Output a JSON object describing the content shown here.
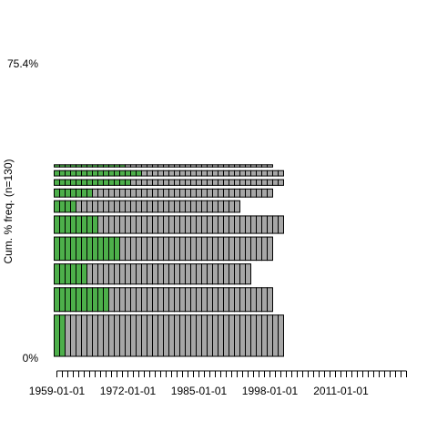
{
  "chart_data": {
    "type": "bar",
    "stacked": true,
    "orientation": "horizontal-stack",
    "title": "",
    "xlabel": "",
    "ylabel": "Cum. % freq. (n=130)",
    "y_ticks": [
      "75.4%",
      "0%"
    ],
    "x_tick_labels": [
      "1959-01-01",
      "1972-01-01",
      "1985-01-01",
      "1998-01-01",
      "2011-01-01"
    ],
    "x_tick_years": [
      1959,
      1972,
      1985,
      1998,
      2011
    ],
    "x_axis": {
      "start_year": 1959,
      "end_year": 2023,
      "minor_tick_interval_years": 1
    },
    "grid": false,
    "legend": "none",
    "colors": {
      "highlight": "#4daf4a",
      "rest": "#a6a6a6",
      "outline": "#000000"
    },
    "rows_bottom_to_top": [
      {
        "cumulative_percent_bottom": 0.0,
        "cumulative_percent_top": 11.5,
        "cells_highlight": 2,
        "cells_rest": 40
      },
      {
        "cumulative_percent_bottom": 11.5,
        "cumulative_percent_top": 18.5,
        "cells_highlight": 10,
        "cells_rest": 30
      },
      {
        "cumulative_percent_bottom": 18.5,
        "cumulative_percent_top": 24.6,
        "cells_highlight": 6,
        "cells_rest": 30
      },
      {
        "cumulative_percent_bottom": 24.6,
        "cumulative_percent_top": 31.5,
        "cells_highlight": 12,
        "cells_rest": 28
      },
      {
        "cumulative_percent_bottom": 31.5,
        "cumulative_percent_top": 36.9,
        "cells_highlight": 8,
        "cells_rest": 34
      },
      {
        "cumulative_percent_bottom": 36.9,
        "cumulative_percent_top": 40.8,
        "cells_highlight": 4,
        "cells_rest": 30
      },
      {
        "cumulative_percent_bottom": 40.8,
        "cumulative_percent_top": 43.8,
        "cells_highlight": 7,
        "cells_rest": 33
      },
      {
        "cumulative_percent_bottom": 43.8,
        "cumulative_percent_top": 46.2,
        "cells_highlight": 14,
        "cells_rest": 28
      },
      {
        "cumulative_percent_bottom": 46.2,
        "cumulative_percent_top": 48.5,
        "cells_highlight": 16,
        "cells_rest": 26
      },
      {
        "cumulative_percent_bottom": 48.5,
        "cumulative_percent_top": 50.0,
        "cells_highlight": 13,
        "cells_rest": 27
      }
    ]
  }
}
